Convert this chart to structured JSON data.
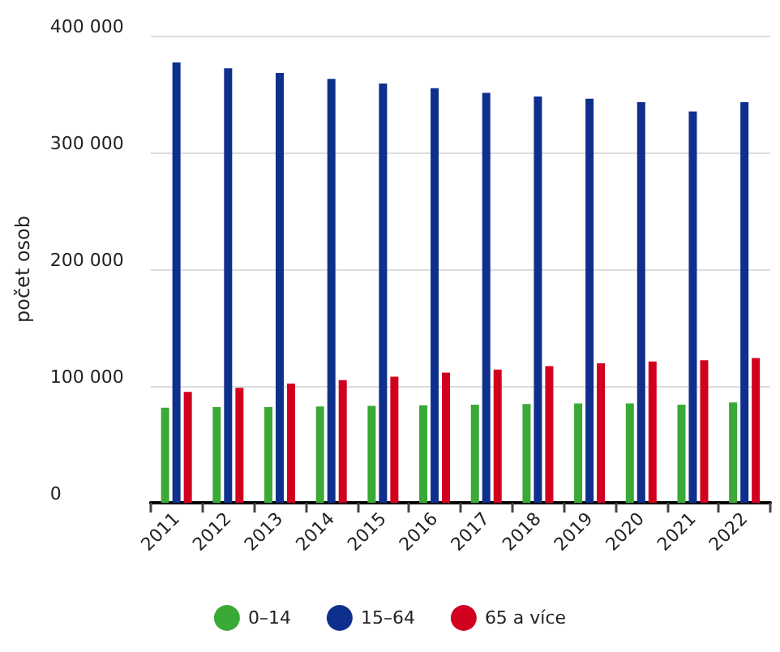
{
  "chart_data": {
    "type": "bar",
    "ylabel": "počet osob",
    "categories": [
      "2011",
      "2012",
      "2013",
      "2014",
      "2015",
      "2016",
      "2017",
      "2018",
      "2019",
      "2020",
      "2021",
      "2022"
    ],
    "series": [
      {
        "name": "0–14",
        "color": "#3aa935",
        "values": [
          81500,
          82000,
          82000,
          82500,
          83000,
          83500,
          84000,
          84500,
          85000,
          85000,
          84000,
          86000
        ]
      },
      {
        "name": "15–64",
        "color": "#0e2f8c",
        "values": [
          377000,
          372000,
          368000,
          363000,
          359000,
          355000,
          351000,
          348000,
          346000,
          343000,
          335000,
          343000
        ]
      },
      {
        "name": "65 a více",
        "color": "#d2001f",
        "values": [
          95000,
          98500,
          102000,
          105000,
          108000,
          111500,
          114000,
          117000,
          119500,
          121000,
          122000,
          124000
        ]
      }
    ],
    "ylim": [
      0,
      400000
    ],
    "yticks": [
      {
        "value": 0,
        "label": "0"
      },
      {
        "value": 100000,
        "label": "100 000"
      },
      {
        "value": 200000,
        "label": "200 000"
      },
      {
        "value": 300000,
        "label": "300 000"
      },
      {
        "value": 400000,
        "label": "400 000"
      }
    ],
    "grid": "y",
    "legend": "bottom"
  }
}
